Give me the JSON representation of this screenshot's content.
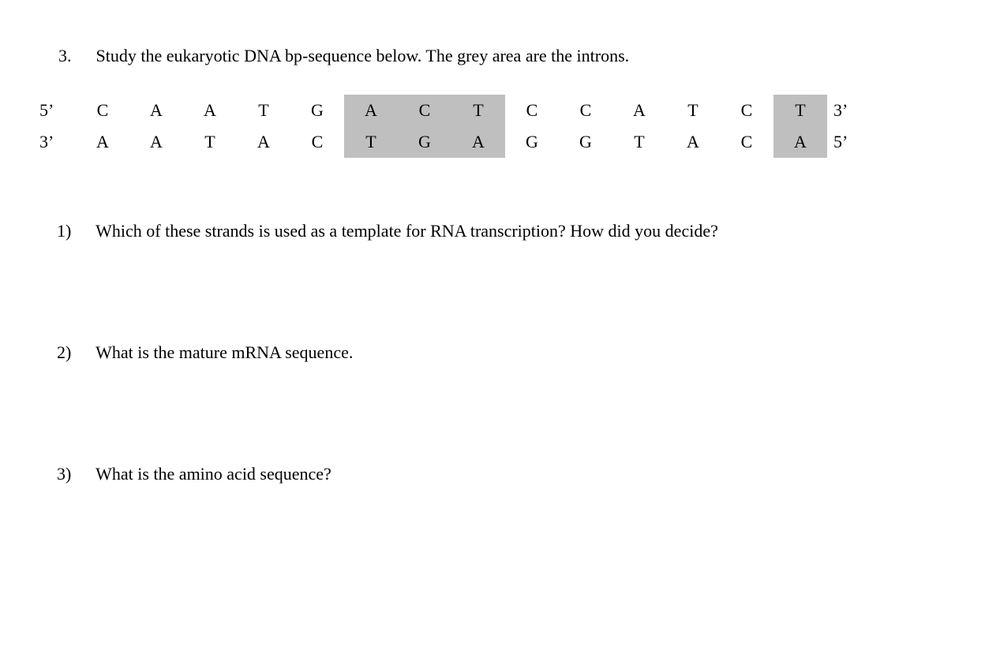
{
  "question": {
    "number": "3.",
    "text": "Study the eukaryotic DNA bp-sequence below. The grey area are the introns."
  },
  "dna": {
    "intron_color": "#bfbfbf",
    "top": {
      "left_label": "5’",
      "right_label": "3’",
      "bases": [
        "C",
        "A",
        "A",
        "T",
        "G",
        "A",
        "C",
        "T",
        "C",
        "C",
        "A",
        "T",
        "C",
        "T"
      ],
      "introns": [
        false,
        false,
        false,
        false,
        false,
        true,
        true,
        true,
        false,
        false,
        false,
        false,
        false,
        true
      ]
    },
    "bottom": {
      "left_label": "3’",
      "right_label": "5’",
      "bases": [
        "A",
        "A",
        "T",
        "A",
        "C",
        "T",
        "G",
        "A",
        "G",
        "G",
        "T",
        "A",
        "C",
        "A"
      ],
      "introns": [
        false,
        false,
        false,
        false,
        false,
        true,
        true,
        true,
        false,
        false,
        false,
        false,
        false,
        true
      ]
    }
  },
  "sub_questions": {
    "q1": {
      "number": "1)",
      "text": "Which of these strands is used as a template for RNA transcription? How did you decide?"
    },
    "q2": {
      "number": "2)",
      "text": "What is the mature mRNA sequence."
    },
    "q3": {
      "number": "3)",
      "text": "What is the amino acid sequence?"
    }
  }
}
